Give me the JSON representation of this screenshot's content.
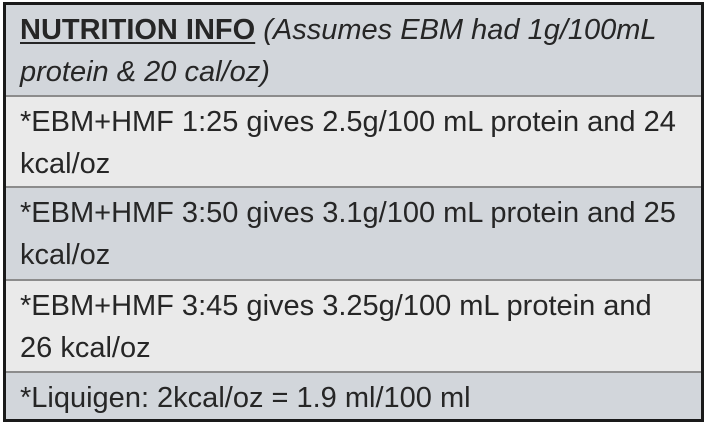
{
  "nutrition_table": {
    "heading": "NUTRITION INFO",
    "note": "(Assumes EBM had 1g/100mL protein & 20 cal/oz)",
    "rows": [
      "*EBM+HMF 1:25 gives 2.5g/100 mL protein and 24 kcal/oz",
      "*EBM+HMF 3:50 gives 3.1g/100 mL protein and 25 kcal/oz",
      "*EBM+HMF 3:45 gives 3.25g/100 mL protein and 26 kcal/oz",
      "*Liquigen: 2kcal/oz = 1.9 ml/100 ml"
    ]
  }
}
